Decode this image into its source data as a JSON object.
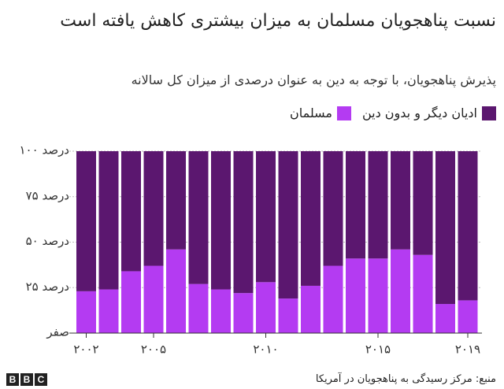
{
  "chart_data": {
    "type": "stacked-bar",
    "title": "نسبت پناهجویان مسلمان به میزان بیشتری کاهش یافته است",
    "subtitle": "پذیرش پناهجویان، با توجه به دین به عنوان درصدی از میزان کل سالانه",
    "categories": [
      "۲۰۰۲",
      null,
      null,
      "۲۰۰۵",
      null,
      null,
      null,
      null,
      "۲۰۱۰",
      null,
      null,
      null,
      null,
      "۲۰۱۵",
      null,
      null,
      null,
      "۲۰۱۹"
    ],
    "series": [
      {
        "name": "مسلمان",
        "color": "#b43bf2",
        "values": [
          23,
          24,
          34,
          37,
          46,
          27,
          24,
          22,
          28,
          19,
          26,
          37,
          41,
          41,
          46,
          43,
          16,
          18
        ]
      },
      {
        "name": "ادیان دیگر و بدون دین",
        "color": "#5b176f",
        "values": [
          77,
          76,
          66,
          63,
          54,
          73,
          76,
          78,
          72,
          81,
          74,
          63,
          59,
          59,
          54,
          57,
          84,
          82
        ]
      }
    ],
    "ylim": [
      0,
      100
    ],
    "yticks": [
      {
        "value": 0,
        "label": "صفر"
      },
      {
        "value": 25,
        "label": "۲۵ درصد"
      },
      {
        "value": 50,
        "label": "۵۰ درصد"
      },
      {
        "value": 75,
        "label": "۷۵ درصد"
      },
      {
        "value": 100,
        "label": "۱۰۰ درصد"
      }
    ],
    "grid": true,
    "source": "منبع: مرکز رسیدگی به پناهجویان در آمریکا",
    "logo": [
      "B",
      "B",
      "C"
    ]
  }
}
